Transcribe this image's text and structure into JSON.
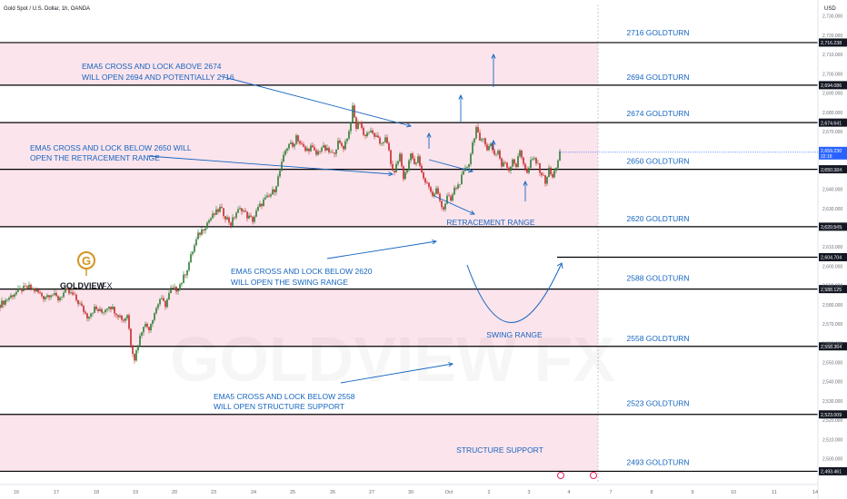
{
  "header": {
    "symbol_title": "Gold Spot / U.S. Dollar, 1h, OANDA",
    "currency": "USD"
  },
  "chart_data": {
    "type": "candlestick",
    "title": "Gold Spot / U.S. Dollar, 1h, OANDA",
    "price_range": [
      2488,
      2736
    ],
    "y_ticks": [
      2500,
      2510,
      2520,
      2530,
      2540,
      2550,
      2560,
      2570,
      2580,
      2590,
      2600,
      2610,
      2620,
      2630,
      2640,
      2650,
      2660,
      2670,
      2680,
      2690,
      2700,
      2710,
      2720,
      2730
    ],
    "y_tick_labels": [
      "2,500.000",
      "2,510.000",
      "2,520.000",
      "2,530.000",
      "2,540.000",
      "2,550.000",
      "2,560.000",
      "2,570.000",
      "2,580.000",
      "2,590.000",
      "2,600.000",
      "2,610.000",
      "2,620.000",
      "2,630.000",
      "2,640.000",
      "2,650.000",
      "2,660.000",
      "2,670.000",
      "2,680.000",
      "2,690.000",
      "2,700.000",
      "2,710.000",
      "2,720.000",
      "2,730.000"
    ],
    "x_labels": [
      "16",
      "17",
      "18",
      "19",
      "20",
      "23",
      "24",
      "25",
      "26",
      "27",
      "30",
      "Oct",
      "2",
      "3",
      "4",
      "7",
      "8",
      "9",
      "10",
      "11",
      "14"
    ],
    "current_price": {
      "value": 2659.23,
      "label": "2,659.230",
      "countdown": "22:18"
    },
    "zones": [
      {
        "from": 2694.086,
        "to": 2716.238,
        "color": "#fce4ec"
      },
      {
        "from": 2650.384,
        "to": 2674.641,
        "color": "#fce4ec"
      },
      {
        "from": 2620.545,
        "to": 2650.384,
        "color": "#fce4ec"
      },
      {
        "from": 2558.364,
        "to": 2588.125,
        "color": "#fce4ec"
      },
      {
        "from": 2493.461,
        "to": 2523.009,
        "color": "#fce4ec"
      }
    ],
    "levels": [
      {
        "price": 2716.238,
        "label": "2,716.238",
        "name": "2716 GOLDTURN"
      },
      {
        "price": 2694.086,
        "label": "2,694.086",
        "name": "2694 GOLDTURN"
      },
      {
        "price": 2674.641,
        "label": "2,674.641",
        "name": "2674 GOLDTURN"
      },
      {
        "price": 2650.384,
        "label": "2,650.384",
        "name": "2650 GOLDTURN"
      },
      {
        "price": 2620.545,
        "label": "2,620.545",
        "name": "2620 GOLDTURN"
      },
      {
        "price": 2604.704,
        "label": "2,604.704",
        "name": ""
      },
      {
        "price": 2588.125,
        "label": "2,588.125",
        "name": "2588 GOLDTURN"
      },
      {
        "price": 2558.364,
        "label": "2,558.364",
        "name": "2558 GOLDTURN"
      },
      {
        "price": 2523.009,
        "label": "2,523.009",
        "name": "2523 GOLDTURN"
      },
      {
        "price": 2493.461,
        "label": "2,493.461",
        "name": "2493 GOLDTURN"
      }
    ],
    "price_path": [
      [
        0,
        2580
      ],
      [
        8,
        2583
      ],
      [
        16,
        2586
      ],
      [
        24,
        2588
      ],
      [
        32,
        2589
      ],
      [
        40,
        2587
      ],
      [
        48,
        2584
      ],
      [
        56,
        2586
      ],
      [
        64,
        2583
      ],
      [
        72,
        2587
      ],
      [
        80,
        2585
      ],
      [
        88,
        2580
      ],
      [
        96,
        2574
      ],
      [
        104,
        2578
      ],
      [
        112,
        2576
      ],
      [
        120,
        2580
      ],
      [
        128,
        2576
      ],
      [
        136,
        2572
      ],
      [
        140,
        2575
      ],
      [
        144,
        2560
      ],
      [
        148,
        2552
      ],
      [
        152,
        2560
      ],
      [
        158,
        2570
      ],
      [
        164,
        2568
      ],
      [
        170,
        2576
      ],
      [
        176,
        2583
      ],
      [
        182,
        2580
      ],
      [
        188,
        2588
      ],
      [
        194,
        2588
      ],
      [
        200,
        2592
      ],
      [
        206,
        2599
      ],
      [
        212,
        2608
      ],
      [
        218,
        2616
      ],
      [
        224,
        2620
      ],
      [
        230,
        2624
      ],
      [
        236,
        2627
      ],
      [
        242,
        2630
      ],
      [
        248,
        2626
      ],
      [
        254,
        2622
      ],
      [
        260,
        2628
      ],
      [
        266,
        2630
      ],
      [
        272,
        2626
      ],
      [
        278,
        2624
      ],
      [
        284,
        2630
      ],
      [
        290,
        2634
      ],
      [
        296,
        2636
      ],
      [
        302,
        2640
      ],
      [
        306,
        2646
      ],
      [
        310,
        2653
      ],
      [
        314,
        2660
      ],
      [
        318,
        2664
      ],
      [
        322,
        2662
      ],
      [
        326,
        2668
      ],
      [
        330,
        2664
      ],
      [
        336,
        2660
      ],
      [
        342,
        2662
      ],
      [
        348,
        2658
      ],
      [
        354,
        2662
      ],
      [
        360,
        2660
      ],
      [
        366,
        2658
      ],
      [
        372,
        2664
      ],
      [
        378,
        2662
      ],
      [
        384,
        2670
      ],
      [
        388,
        2682
      ],
      [
        392,
        2672
      ],
      [
        396,
        2676
      ],
      [
        400,
        2668
      ],
      [
        406,
        2670
      ],
      [
        412,
        2668
      ],
      [
        418,
        2664
      ],
      [
        424,
        2666
      ],
      [
        428,
        2660
      ],
      [
        432,
        2648
      ],
      [
        436,
        2652
      ],
      [
        440,
        2658
      ],
      [
        444,
        2646
      ],
      [
        448,
        2650
      ],
      [
        452,
        2660
      ],
      [
        456,
        2652
      ],
      [
        460,
        2656
      ],
      [
        464,
        2648
      ],
      [
        468,
        2644
      ],
      [
        472,
        2642
      ],
      [
        476,
        2636
      ],
      [
        480,
        2640
      ],
      [
        484,
        2634
      ],
      [
        488,
        2630
      ],
      [
        492,
        2636
      ],
      [
        496,
        2634
      ],
      [
        500,
        2640
      ],
      [
        504,
        2642
      ],
      [
        508,
        2646
      ],
      [
        512,
        2650
      ],
      [
        516,
        2654
      ],
      [
        520,
        2664
      ],
      [
        524,
        2672
      ],
      [
        528,
        2664
      ],
      [
        532,
        2668
      ],
      [
        536,
        2660
      ],
      [
        540,
        2664
      ],
      [
        544,
        2658
      ],
      [
        548,
        2660
      ],
      [
        552,
        2652
      ],
      [
        556,
        2654
      ],
      [
        560,
        2650
      ],
      [
        564,
        2656
      ],
      [
        568,
        2652
      ],
      [
        572,
        2660
      ],
      [
        576,
        2654
      ],
      [
        580,
        2648
      ],
      [
        584,
        2654
      ],
      [
        588,
        2656
      ],
      [
        592,
        2652
      ],
      [
        596,
        2648
      ],
      [
        600,
        2644
      ],
      [
        604,
        2650
      ],
      [
        608,
        2646
      ],
      [
        612,
        2652
      ],
      [
        616,
        2659
      ]
    ],
    "annotations": [
      "EMA5 CROSS AND LOCK ABOVE 2674",
      "WILL OPEN 2694 AND POTENTIALLY 2716",
      "EMA5 CROSS AND LOCK BELOW 2650 WILL",
      "OPEN THE RETRACEMENT RANGE",
      "RETRACEMENT RANGE",
      "EMA5 CROSS AND LOCK BELOW 2620",
      "WILL OPEN THE SWING RANGE",
      "SWING RANGE",
      "EMA5 CROSS AND LOCK BELOW 2558",
      "WILL OPEN STRUCTURE SUPPORT",
      "STRUCTURE SUPPORT"
    ],
    "watermark": "GOLDVIEW FX",
    "logo": {
      "text": "GOLDVIEW",
      "suffix": "FX",
      "glyph": "G"
    },
    "colors": {
      "zone": "#fce4ec",
      "level_line": "#000000",
      "annotation": "#1565c0",
      "up": "#2e7d32",
      "down": "#c62828",
      "price_marker": "#2962ff",
      "logo": "#d4941e"
    }
  }
}
